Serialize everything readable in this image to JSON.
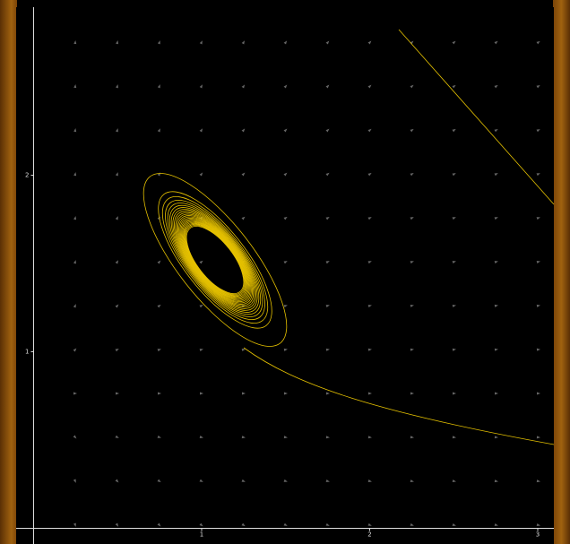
{
  "plot": {
    "xticks": [
      1,
      2,
      3
    ],
    "yticks": [
      1,
      2
    ]
  }
}
